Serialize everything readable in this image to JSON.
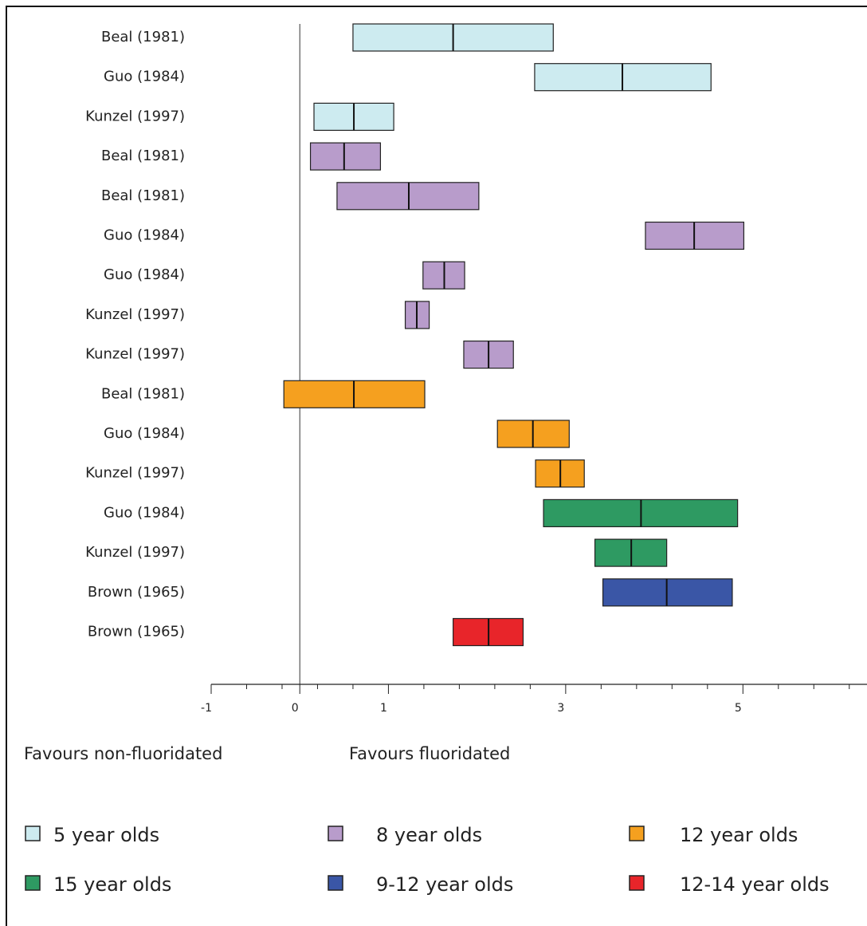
{
  "chart_data": {
    "type": "forest",
    "xlim": [
      -1,
      6.4
    ],
    "xticks": [
      -1,
      0,
      1,
      3,
      5
    ],
    "minor_xticks": [
      -0.6,
      -0.2,
      0.2,
      0.6,
      1.4,
      1.8,
      2.2,
      2.6,
      3.4,
      3.8,
      4.2,
      4.6,
      5.4,
      5.8,
      6.2
    ],
    "reference_line": 0,
    "annotations": [
      "Favours non-fluoridated",
      "Favours fluoridated"
    ],
    "series": [
      {
        "name": "5 year olds",
        "color": "#cdebf0",
        "categories": [
          "Beal (1981)",
          "Guo (1984)",
          "Kunzel (1997)"
        ],
        "low": [
          0.6,
          2.65,
          0.16
        ],
        "mid": [
          1.73,
          3.64,
          0.61
        ],
        "high": [
          2.86,
          4.64,
          1.06
        ]
      },
      {
        "name": "8 year olds",
        "color": "#b89ccb",
        "categories": [
          "Beal (1981)",
          "Beal (1981)",
          "Guo (1984)",
          "Guo (1984)",
          "Kunzel (1997)",
          "Kunzel (1997)"
        ],
        "low": [
          0.12,
          0.42,
          3.9,
          1.39,
          1.19,
          1.85
        ],
        "mid": [
          0.5,
          1.23,
          4.45,
          1.63,
          1.32,
          2.13
        ],
        "high": [
          0.91,
          2.02,
          5.01,
          1.86,
          1.46,
          2.41
        ]
      },
      {
        "name": "12 year olds",
        "color": "#f5a01f",
        "categories": [
          "Beal (1981)",
          "Guo (1984)",
          "Kunzel (1997)"
        ],
        "low": [
          -0.18,
          2.23,
          2.66
        ],
        "mid": [
          0.61,
          2.63,
          2.94
        ],
        "high": [
          1.41,
          3.04,
          3.21
        ]
      },
      {
        "name": "15 year olds",
        "color": "#2e9a62",
        "categories": [
          "Guo (1984)",
          "Kunzel (1997)"
        ],
        "low": [
          2.75,
          3.33
        ],
        "mid": [
          3.85,
          3.74
        ],
        "high": [
          4.94,
          4.14
        ]
      },
      {
        "name": "9-12 year olds",
        "color": "#3a56a6",
        "categories": [
          "Brown (1965)"
        ],
        "low": [
          3.42
        ],
        "mid": [
          4.14
        ],
        "high": [
          4.88
        ]
      },
      {
        "name": "12-14 year olds",
        "color": "#e8252a",
        "categories": [
          "Brown (1965)"
        ],
        "low": [
          1.73
        ],
        "mid": [
          2.13
        ],
        "high": [
          2.52
        ]
      }
    ]
  }
}
